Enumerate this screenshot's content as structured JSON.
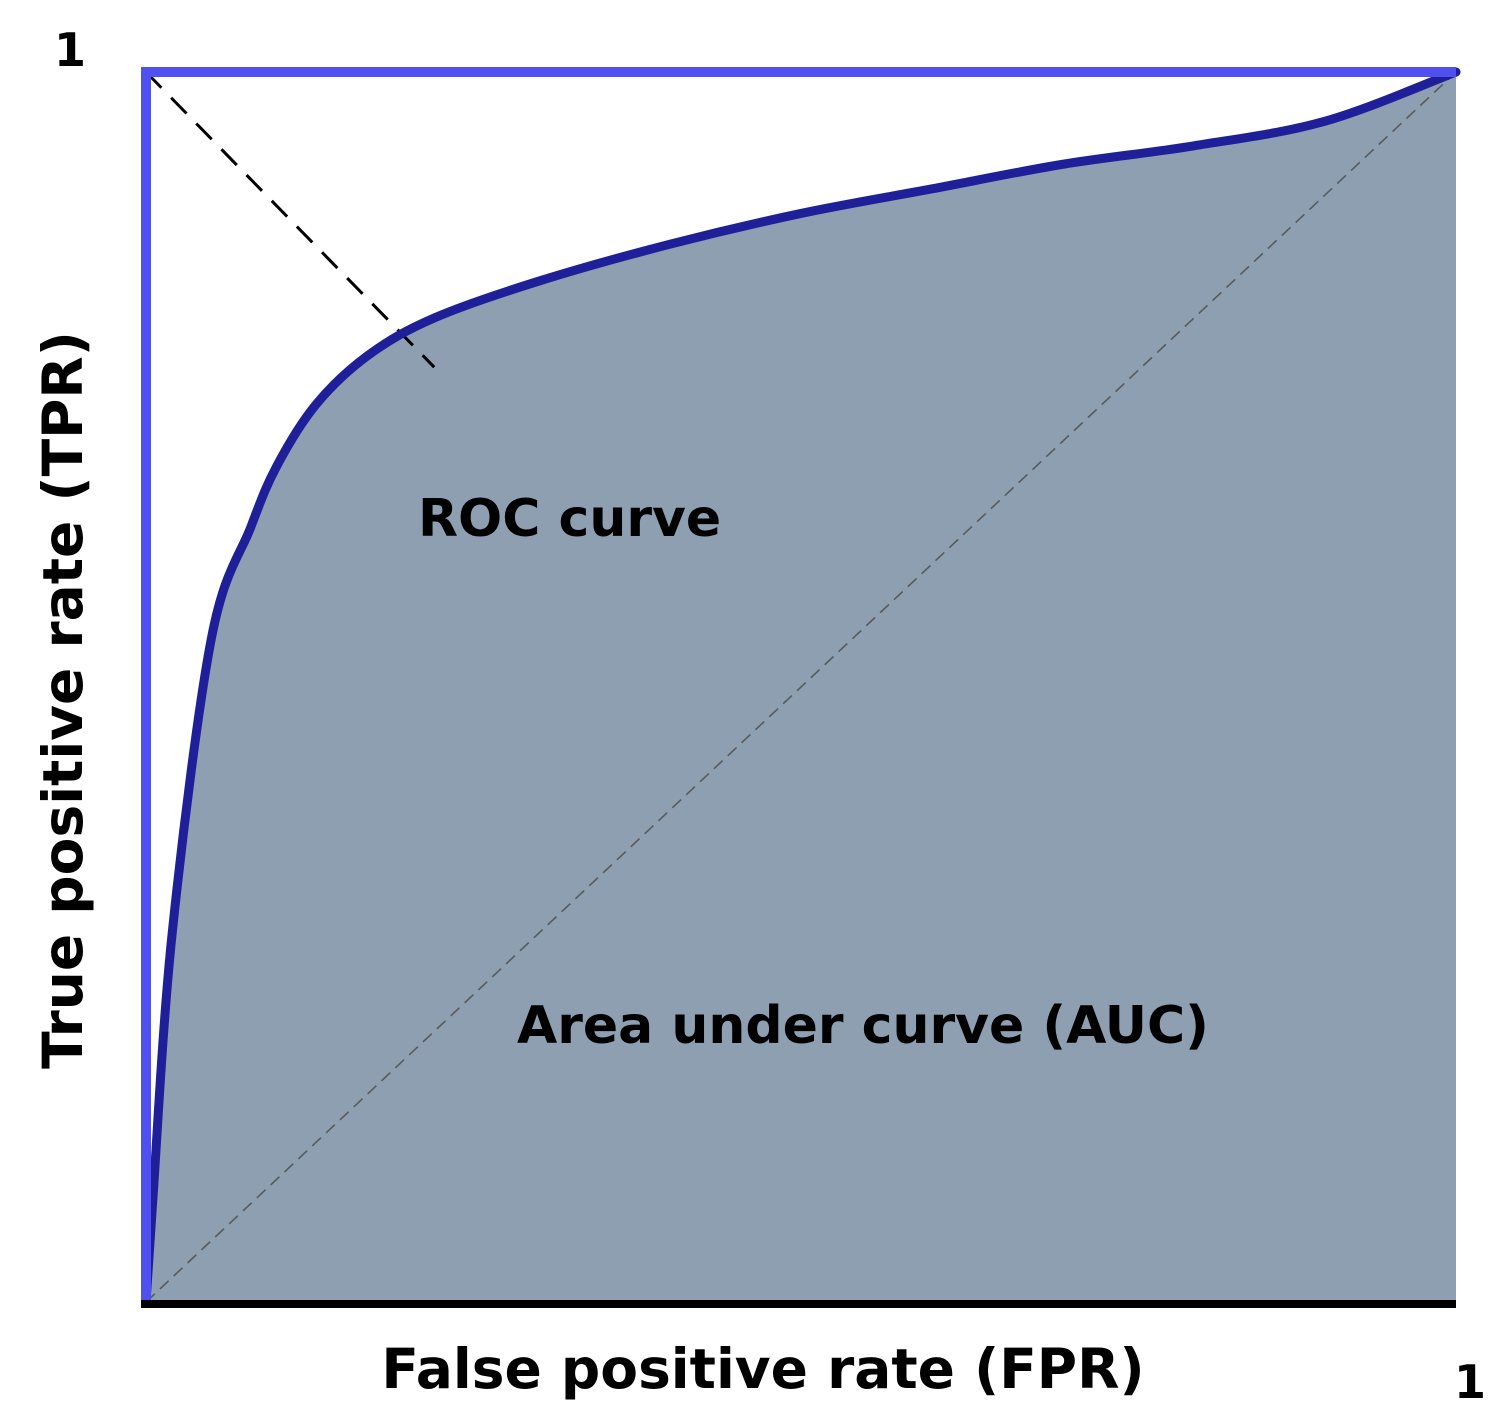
{
  "chart_data": {
    "type": "area",
    "title": "",
    "xlabel": "False positive rate (FPR)",
    "ylabel": "True positive rate (TPR)",
    "xlim": [
      0,
      1
    ],
    "ylim": [
      0,
      1
    ],
    "x_tick_labels": [
      "1"
    ],
    "y_tick_labels": [
      "1"
    ],
    "grid": false,
    "annotations": [
      "ROC curve",
      "Area under curve (AUC)"
    ],
    "series": [
      {
        "kind": "roc-curve",
        "x": [
          0,
          0.005,
          0.02,
          0.05,
          0.08,
          0.1,
          0.13,
          0.17,
          0.22,
          0.3,
          0.4,
          0.5,
          0.6,
          0.7,
          0.8,
          0.9,
          1.0
        ],
        "y": [
          0,
          0.08,
          0.3,
          0.54,
          0.63,
          0.68,
          0.73,
          0.77,
          0.8,
          0.83,
          0.86,
          0.885,
          0.905,
          0.925,
          0.94,
          0.96,
          1.0
        ]
      },
      {
        "kind": "chance-diagonal",
        "x": [
          0,
          1
        ],
        "y": [
          0,
          1
        ]
      },
      {
        "kind": "perfect-classifier",
        "x": [
          0,
          0,
          1
        ],
        "y": [
          0,
          1,
          1
        ]
      },
      {
        "kind": "optimal-point-line",
        "x": [
          0,
          0.22
        ],
        "y": [
          1,
          0.76
        ]
      }
    ],
    "colors": {
      "auc_fill": "#8d9fb1",
      "roc_curve": "#1f1f99",
      "perfect_line": "#5050f0",
      "axis": "#000000"
    }
  }
}
